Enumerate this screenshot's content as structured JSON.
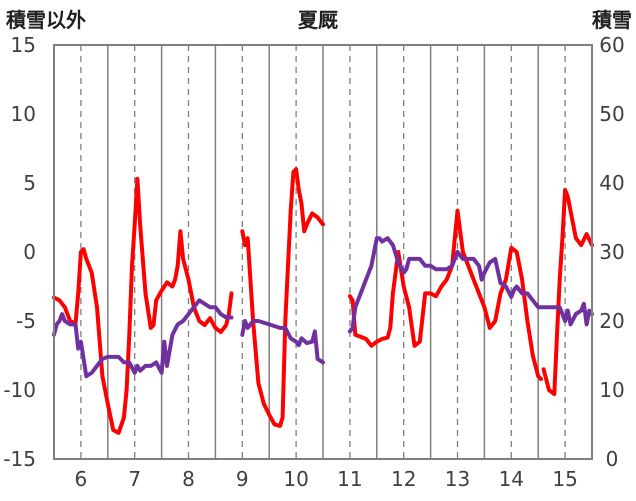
{
  "chart_data": {
    "type": "line",
    "title": "夏厩",
    "left_axis_label": "積雪以外",
    "right_axis_label": "積雪",
    "x_tick_labels": [
      "6",
      "7",
      "8",
      "9",
      "10",
      "11",
      "12",
      "13",
      "14",
      "15"
    ],
    "x_range": [
      5.5,
      15.5
    ],
    "y_left": {
      "ticks": [
        "-15",
        "-10",
        "-5",
        "0",
        "5",
        "10",
        "15"
      ],
      "range": [
        -15,
        15
      ]
    },
    "y_right": {
      "ticks": [
        "0",
        "10",
        "20",
        "30",
        "40",
        "50",
        "60"
      ],
      "range": [
        0,
        60
      ]
    },
    "grid": {
      "vertical_solid_at": [
        6.5,
        7.5,
        8.5,
        9.5,
        10.5,
        11.5,
        12.5,
        13.5,
        14.5
      ],
      "vertical_dashed_at": [
        6,
        7,
        8,
        9,
        10,
        11,
        12,
        13,
        14,
        15
      ]
    },
    "series": [
      {
        "color": "#ff0000",
        "axis": "left",
        "segments": [
          [
            [
              5.5,
              -3.3
            ],
            [
              5.6,
              -3.5
            ],
            [
              5.7,
              -4.0
            ],
            [
              5.8,
              -5.0
            ],
            [
              5.9,
              -5.2
            ],
            [
              5.95,
              -3.0
            ],
            [
              6.0,
              0.0
            ],
            [
              6.05,
              0.2
            ],
            [
              6.1,
              -0.5
            ],
            [
              6.2,
              -1.5
            ],
            [
              6.3,
              -4.0
            ],
            [
              6.4,
              -9.0
            ],
            [
              6.5,
              -11.0
            ],
            [
              6.6,
              -12.9
            ],
            [
              6.7,
              -13.1
            ],
            [
              6.8,
              -12.0
            ],
            [
              6.85,
              -10.0
            ],
            [
              6.9,
              -6.0
            ],
            [
              6.95,
              -1.0
            ],
            [
              7.0,
              2.0
            ],
            [
              7.05,
              5.3
            ],
            [
              7.1,
              2.0
            ],
            [
              7.2,
              -3.0
            ],
            [
              7.3,
              -5.5
            ],
            [
              7.35,
              -5.3
            ],
            [
              7.4,
              -3.5
            ],
            [
              7.5,
              -2.8
            ],
            [
              7.6,
              -2.2
            ],
            [
              7.7,
              -2.5
            ],
            [
              7.75,
              -2.0
            ],
            [
              7.8,
              -1.0
            ],
            [
              7.85,
              1.5
            ],
            [
              7.9,
              -0.5
            ],
            [
              8.0,
              -2.0
            ],
            [
              8.1,
              -4.0
            ],
            [
              8.2,
              -5.0
            ],
            [
              8.3,
              -5.3
            ],
            [
              8.4,
              -4.8
            ],
            [
              8.5,
              -5.5
            ],
            [
              8.6,
              -5.8
            ],
            [
              8.7,
              -5.3
            ],
            [
              8.75,
              -4.5
            ],
            [
              8.8,
              -3.0
            ]
          ],
          [
            [
              9.0,
              1.5
            ],
            [
              9.05,
              0.5
            ],
            [
              9.1,
              1.0
            ],
            [
              9.15,
              -2.0
            ],
            [
              9.2,
              -5.0
            ],
            [
              9.3,
              -9.5
            ],
            [
              9.4,
              -11.0
            ],
            [
              9.5,
              -11.8
            ],
            [
              9.6,
              -12.5
            ],
            [
              9.7,
              -12.6
            ],
            [
              9.75,
              -12.0
            ],
            [
              9.8,
              -5.0
            ],
            [
              9.9,
              3.0
            ],
            [
              9.95,
              5.8
            ],
            [
              10.0,
              6.0
            ],
            [
              10.05,
              4.5
            ],
            [
              10.1,
              3.5
            ],
            [
              10.15,
              1.5
            ],
            [
              10.2,
              2.0
            ],
            [
              10.3,
              2.8
            ],
            [
              10.4,
              2.5
            ],
            [
              10.5,
              2.0
            ]
          ],
          [
            [
              11.0,
              -3.2
            ],
            [
              11.05,
              -3.5
            ],
            [
              11.1,
              -6.0
            ],
            [
              11.3,
              -6.3
            ],
            [
              11.4,
              -6.8
            ],
            [
              11.5,
              -6.5
            ],
            [
              11.6,
              -6.3
            ],
            [
              11.7,
              -6.2
            ],
            [
              11.75,
              -5.5
            ],
            [
              11.8,
              -3.0
            ],
            [
              11.9,
              0.0
            ],
            [
              12.0,
              -2.5
            ],
            [
              12.1,
              -4.0
            ],
            [
              12.2,
              -6.8
            ],
            [
              12.3,
              -6.5
            ],
            [
              12.4,
              -3.0
            ],
            [
              12.5,
              -3.0
            ],
            [
              12.6,
              -3.2
            ],
            [
              12.7,
              -2.5
            ],
            [
              12.8,
              -2.0
            ],
            [
              12.9,
              -1.0
            ],
            [
              12.95,
              1.0
            ],
            [
              13.0,
              3.0
            ],
            [
              13.1,
              0.0
            ],
            [
              13.2,
              -1.0
            ],
            [
              13.3,
              -2.0
            ],
            [
              13.4,
              -3.0
            ],
            [
              13.5,
              -4.0
            ],
            [
              13.6,
              -5.5
            ],
            [
              13.7,
              -5.0
            ],
            [
              13.8,
              -3.0
            ],
            [
              13.9,
              -2.0
            ],
            [
              14.0,
              0.3
            ],
            [
              14.1,
              0.0
            ],
            [
              14.2,
              -2.0
            ],
            [
              14.3,
              -5.0
            ],
            [
              14.4,
              -7.5
            ],
            [
              14.5,
              -9.0
            ],
            [
              14.55,
              -9.2
            ]
          ],
          [
            [
              14.6,
              -8.5
            ],
            [
              14.7,
              -10.0
            ],
            [
              14.8,
              -10.3
            ],
            [
              14.85,
              -6.0
            ],
            [
              14.9,
              -2.0
            ],
            [
              14.95,
              1.0
            ],
            [
              15.0,
              4.5
            ],
            [
              15.05,
              4.0
            ],
            [
              15.1,
              3.0
            ],
            [
              15.2,
              1.0
            ],
            [
              15.3,
              0.5
            ],
            [
              15.4,
              1.3
            ],
            [
              15.5,
              0.5
            ]
          ]
        ]
      },
      {
        "color": "#7030a0",
        "axis": "right",
        "segments": [
          [
            [
              5.5,
              18.0
            ],
            [
              5.55,
              19.5
            ],
            [
              5.6,
              20.0
            ],
            [
              5.65,
              21.0
            ],
            [
              5.7,
              20.0
            ],
            [
              5.8,
              19.5
            ],
            [
              5.9,
              19.5
            ],
            [
              5.95,
              16.0
            ],
            [
              6.0,
              17.0
            ],
            [
              6.1,
              12.0
            ],
            [
              6.2,
              12.5
            ],
            [
              6.3,
              13.5
            ],
            [
              6.4,
              14.5
            ],
            [
              6.5,
              14.8
            ],
            [
              6.6,
              14.8
            ],
            [
              6.7,
              14.8
            ],
            [
              6.8,
              14.0
            ],
            [
              6.9,
              14.0
            ],
            [
              7.0,
              12.5
            ],
            [
              7.05,
              13.5
            ],
            [
              7.1,
              12.8
            ],
            [
              7.2,
              13.5
            ],
            [
              7.3,
              13.5
            ],
            [
              7.4,
              14.0
            ],
            [
              7.5,
              12.5
            ],
            [
              7.55,
              17.0
            ],
            [
              7.6,
              13.5
            ],
            [
              7.7,
              18.0
            ],
            [
              7.8,
              19.5
            ],
            [
              7.9,
              20.0
            ],
            [
              8.0,
              21.0
            ],
            [
              8.1,
              22.0
            ],
            [
              8.2,
              23.0
            ],
            [
              8.3,
              22.5
            ],
            [
              8.4,
              22.0
            ],
            [
              8.5,
              22.0
            ],
            [
              8.6,
              21.0
            ],
            [
              8.7,
              20.5
            ],
            [
              8.8,
              20.5
            ]
          ],
          [
            [
              9.0,
              18.0
            ],
            [
              9.05,
              20.0
            ],
            [
              9.1,
              19.0
            ],
            [
              9.2,
              20.0
            ],
            [
              9.3,
              20.0
            ],
            [
              9.5,
              19.5
            ],
            [
              9.7,
              19.0
            ],
            [
              9.8,
              19.0
            ],
            [
              9.9,
              17.5
            ],
            [
              10.0,
              17.0
            ],
            [
              10.05,
              16.5
            ],
            [
              10.1,
              17.5
            ],
            [
              10.2,
              16.8
            ],
            [
              10.3,
              17.0
            ],
            [
              10.35,
              18.5
            ],
            [
              10.4,
              14.5
            ],
            [
              10.5,
              14.0
            ]
          ],
          [
            [
              11.0,
              18.5
            ],
            [
              11.05,
              19.0
            ],
            [
              11.1,
              22.0
            ],
            [
              11.2,
              24.0
            ],
            [
              11.3,
              26.0
            ],
            [
              11.4,
              28.0
            ],
            [
              11.5,
              32.0
            ],
            [
              11.55,
              32.0
            ],
            [
              11.6,
              31.5
            ],
            [
              11.7,
              32.0
            ],
            [
              11.8,
              31.0
            ],
            [
              11.9,
              28.5
            ],
            [
              12.0,
              27.0
            ],
            [
              12.05,
              27.5
            ],
            [
              12.1,
              29.0
            ],
            [
              12.2,
              29.0
            ],
            [
              12.3,
              29.0
            ],
            [
              12.4,
              28.0
            ],
            [
              12.5,
              28.0
            ],
            [
              12.6,
              27.5
            ],
            [
              12.7,
              27.5
            ],
            [
              12.8,
              27.5
            ],
            [
              12.9,
              28.0
            ],
            [
              13.0,
              30.0
            ],
            [
              13.05,
              29.5
            ],
            [
              13.1,
              29.0
            ],
            [
              13.2,
              29.0
            ],
            [
              13.3,
              29.0
            ],
            [
              13.4,
              28.0
            ],
            [
              13.45,
              26.0
            ],
            [
              13.5,
              27.0
            ],
            [
              13.6,
              28.5
            ],
            [
              13.7,
              29.0
            ],
            [
              13.8,
              25.5
            ],
            [
              13.9,
              25.0
            ],
            [
              14.0,
              23.5
            ],
            [
              14.05,
              24.5
            ],
            [
              14.1,
              25.0
            ],
            [
              14.2,
              24.0
            ],
            [
              14.3,
              24.0
            ],
            [
              14.4,
              23.0
            ],
            [
              14.5,
              22.0
            ],
            [
              14.6,
              22.0
            ],
            [
              14.7,
              22.0
            ],
            [
              14.8,
              22.0
            ],
            [
              14.9,
              22.0
            ],
            [
              15.0,
              20.0
            ],
            [
              15.05,
              21.5
            ],
            [
              15.1,
              19.5
            ],
            [
              15.2,
              21.0
            ],
            [
              15.3,
              21.5
            ],
            [
              15.35,
              22.5
            ],
            [
              15.4,
              19.5
            ],
            [
              15.45,
              21.5
            ],
            [
              15.5,
              21.0
            ]
          ]
        ]
      }
    ]
  }
}
